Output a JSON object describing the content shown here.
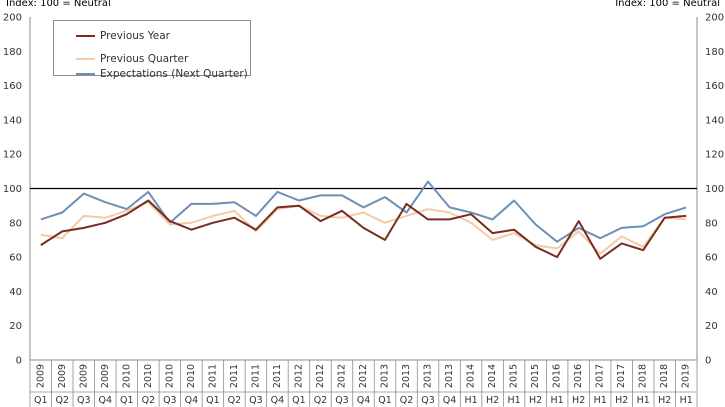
{
  "unit_label_left": "Index: 100 = Neutral",
  "unit_label_right": "Index: 100 = Neutral",
  "chart_data": {
    "type": "line",
    "title": "",
    "xlabel": "",
    "ylabel": "Index: 100 = Neutral",
    "ylim": [
      0,
      200
    ],
    "yticks": [
      0,
      20,
      40,
      60,
      80,
      100,
      120,
      140,
      160,
      180,
      200
    ],
    "grid": false,
    "reference_line": 100,
    "legend_position": "top-left",
    "x_years": [
      "2009",
      "2009",
      "2009",
      "2009",
      "2010",
      "2010",
      "2010",
      "2010",
      "2011",
      "2011",
      "2011",
      "2011",
      "2012",
      "2012",
      "2012",
      "2012",
      "2013",
      "2013",
      "2013",
      "2013",
      "2014",
      "2014",
      "2015",
      "2015",
      "2016",
      "2016",
      "2017",
      "2017",
      "2018",
      "2018",
      "2019"
    ],
    "x_periods": [
      "Q1",
      "Q2",
      "Q3",
      "Q4",
      "Q1",
      "Q2",
      "Q3",
      "Q4",
      "Q1",
      "Q2",
      "Q3",
      "Q4",
      "Q1",
      "Q2",
      "Q3",
      "Q4",
      "Q1",
      "Q2",
      "Q3",
      "Q4",
      "H1",
      "H2",
      "H1",
      "H2",
      "H1",
      "H2",
      "H1",
      "H2",
      "H1",
      "H2",
      "H1"
    ],
    "series": [
      {
        "name": "Previous Year",
        "color": "#7b2c1f",
        "values": [
          67,
          75,
          77,
          80,
          85,
          93,
          81,
          76,
          80,
          83,
          76,
          89,
          90,
          81,
          87,
          77,
          70,
          91,
          82,
          82,
          85,
          74,
          76,
          66,
          60,
          81,
          59,
          68,
          64,
          83,
          84
        ]
      },
      {
        "name": "Previous Quarter",
        "color": "#f5cba5",
        "values": [
          73,
          71,
          84,
          83,
          87,
          92,
          79,
          80,
          84,
          87,
          75,
          88,
          90,
          84,
          83,
          86,
          80,
          84,
          88,
          86,
          80,
          70,
          74,
          67,
          65,
          75,
          62,
          72,
          66,
          83,
          82
        ]
      },
      {
        "name": "Expectations (Next Quarter)",
        "color": "#6e8fb5",
        "values": [
          82,
          86,
          97,
          92,
          88,
          98,
          80,
          91,
          91,
          92,
          84,
          98,
          93,
          96,
          96,
          89,
          95,
          86,
          104,
          89,
          86,
          82,
          93,
          79,
          69,
          77,
          71,
          77,
          78,
          85,
          89
        ]
      }
    ]
  }
}
